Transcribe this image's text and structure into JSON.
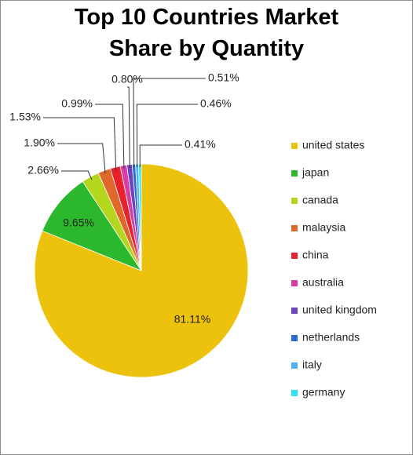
{
  "chart_data": {
    "type": "pie",
    "title": "Top 10 Countries Market Share by Quantity",
    "categories": [
      "united states",
      "japan",
      "canada",
      "malaysia",
      "china",
      "australia",
      "united kingdom",
      "netherlands",
      "italy",
      "germany"
    ],
    "values": [
      81.11,
      9.65,
      2.66,
      1.9,
      1.53,
      0.99,
      0.8,
      0.51,
      0.46,
      0.41
    ],
    "value_labels": [
      "81.11%",
      "9.65%",
      "2.66%",
      "1.90%",
      "1.53%",
      "0.99%",
      "0.80%",
      "0.51%",
      "0.46%",
      "0.41%"
    ],
    "colors": [
      "#ecc20c",
      "#2cb82c",
      "#b4d61c",
      "#e0682c",
      "#e8222c",
      "#d63ea6",
      "#6e42c0",
      "#2a6cd0",
      "#52b2f0",
      "#2ee2f0"
    ],
    "legend": "right"
  }
}
